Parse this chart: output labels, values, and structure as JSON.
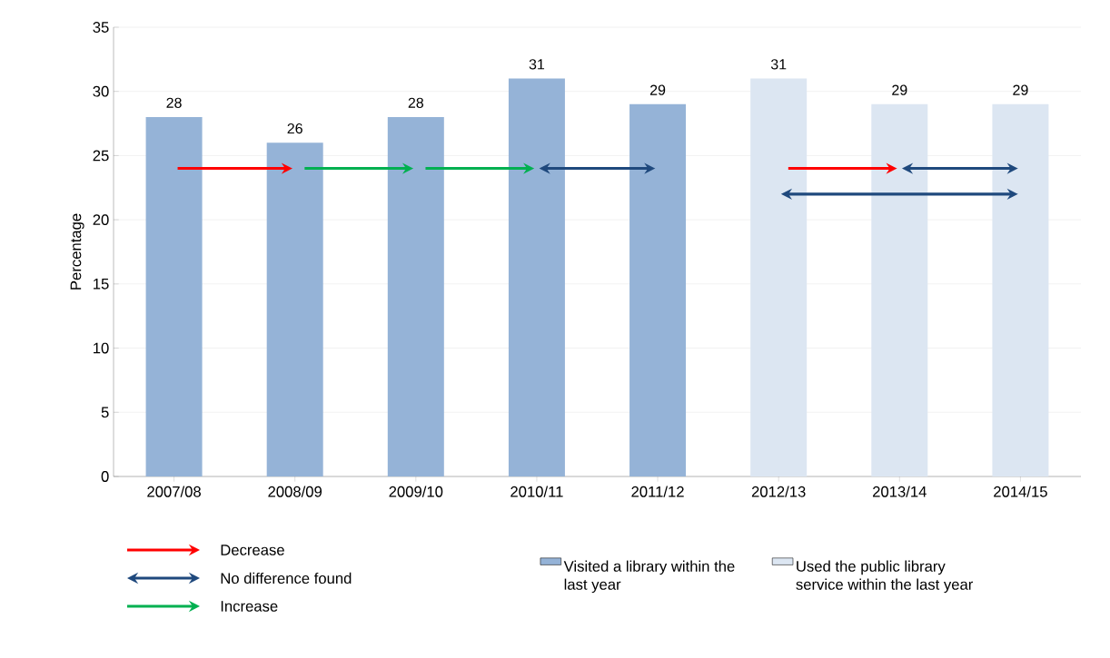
{
  "chart_data": {
    "type": "bar",
    "ylabel": "Percentage",
    "categories": [
      "2007/08",
      "2008/09",
      "2009/10",
      "2010/11",
      "2011/12",
      "2012/13",
      "2013/14",
      "2014/15"
    ],
    "series": [
      {
        "name": "Visited a library within the last year",
        "color": "#95b3d7",
        "values": [
          28,
          26,
          28,
          31,
          29,
          null,
          null,
          null
        ]
      },
      {
        "name": "Used the public library service within the last year",
        "color": "#dce6f2",
        "values": [
          null,
          null,
          null,
          null,
          null,
          31,
          29,
          29
        ]
      }
    ],
    "ylim": [
      0,
      35
    ],
    "yticks": [
      0,
      5,
      10,
      15,
      20,
      25,
      30,
      35
    ],
    "grid": "y",
    "data_labels": true,
    "legend": "bottom",
    "annotations": [
      "Decrease",
      "No difference found",
      "Increase"
    ]
  }
}
